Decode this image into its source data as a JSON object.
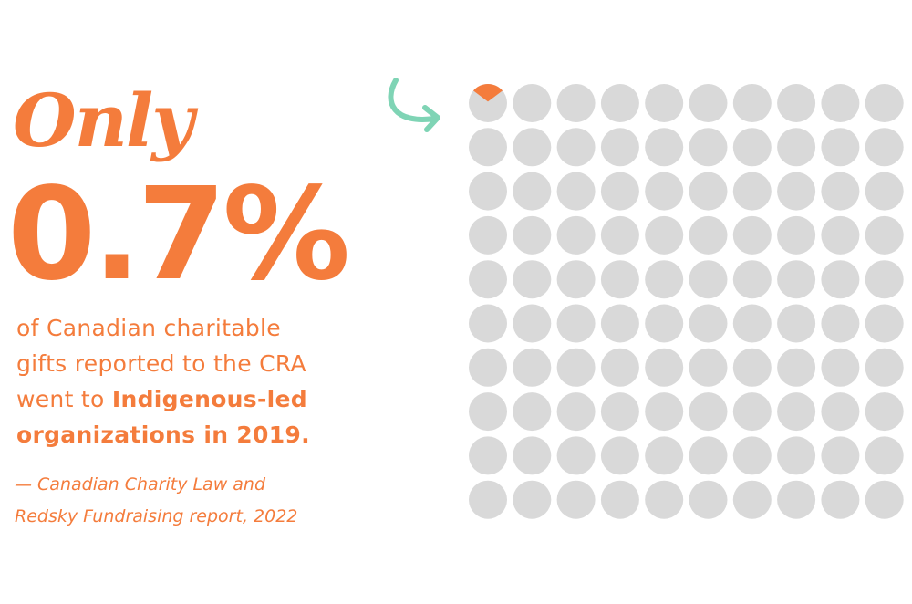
{
  "colors": {
    "accent": "#f47c3c",
    "arrow": "#7fd4b5",
    "dot": "#d9d9d9",
    "background": "#ffffff"
  },
  "headline": {
    "only": "Only",
    "percent": "0.7%"
  },
  "description": {
    "line1": "of Canadian charitable",
    "line2": "gifts reported to the CRA",
    "line3_plain": "went to ",
    "line3_bold": "Indigenous-led",
    "line4_bold": "organizations in 2019."
  },
  "source": {
    "line1": "— Canadian Charity Law and",
    "line2": "Redsky Fundraising report, 2022"
  },
  "chart_data": {
    "type": "waffle",
    "rows": 10,
    "cols": 10,
    "total": 100,
    "highlighted_value": 0.7,
    "unit": "percent",
    "description": "100-dot grid where one dot is partially filled to represent 0.7%"
  }
}
